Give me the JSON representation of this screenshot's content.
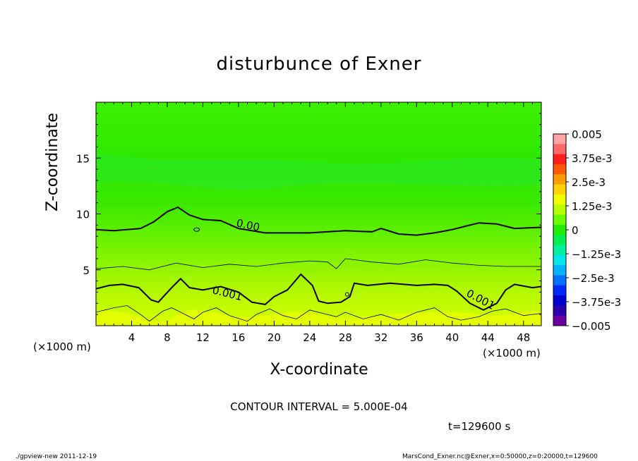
{
  "chart_data": {
    "type": "heatmap",
    "title": "disturbunce of Exner",
    "xlabel": "X-coordinate",
    "ylabel": "Z-coordinate",
    "x_unit_label": "(×1000 m)",
    "xlim": [
      0,
      50
    ],
    "ylim": [
      0,
      20
    ],
    "x_ticks": [
      4,
      8,
      12,
      16,
      20,
      24,
      28,
      32,
      36,
      40,
      44,
      48
    ],
    "y_ticks": [
      5,
      10,
      15
    ],
    "colorbar": {
      "labels": [
        "0.005",
        "3.75e-3",
        "2.5e-3",
        "1.25e-3",
        "0",
        "−1.25e-3",
        "−2.5e-3",
        "−3.75e-3",
        "−0.005"
      ],
      "colors": [
        "#ffa3a3",
        "#ff6868",
        "#ff1e1e",
        "#ff5a00",
        "#ff9b00",
        "#ffd300",
        "#f0ff00",
        "#b8ff00",
        "#6cff00",
        "#22ee00",
        "#00f050",
        "#00f0a0",
        "#00e8e8",
        "#00b4ff",
        "#0070ff",
        "#0028ff",
        "#0000d0",
        "#2a00b0",
        "#6a00a0"
      ]
    },
    "contour_labels": [
      "0.00",
      "0.001",
      "0.001"
    ],
    "contour_interval_text": "CONTOUR INTERVAL = 5.000E-04",
    "time_text": "t=129600  s"
  },
  "footer": {
    "left": "./gpview-new   2011-12-19",
    "right": "MarsCond_Exner.nc@Exner,x=0:50000,z=0:20000,t=129600"
  },
  "colors": {
    "field_top": "#22ee00",
    "field_mid": "#00e060",
    "field_low": "#b8ff00"
  }
}
